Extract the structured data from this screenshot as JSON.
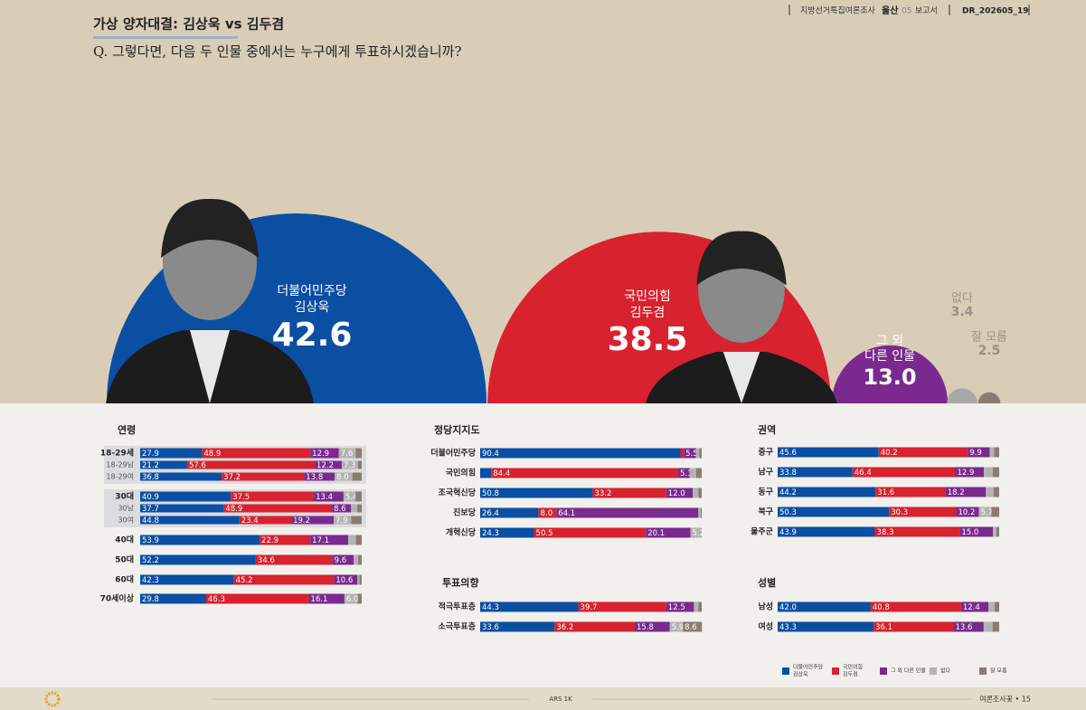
{
  "header": {
    "title": "가상 양자대결: 김상욱 vs 김두겸",
    "question": "Q. 그렇다면, 다음 두 인물 중에서는 누구에게 투표하시겠습니까?",
    "top": [
      "지방선거특집여론조사",
      "울산",
      "05",
      "보고서",
      "DR_202605_19"
    ]
  },
  "bubbles": [
    {
      "lines": [
        "더불어민주당",
        "김상욱"
      ],
      "value": 42.6,
      "color": "#0b4fa3"
    },
    {
      "lines": [
        "국민의힘",
        "김두겸"
      ],
      "value": 38.5,
      "color": "#d8222f"
    },
    {
      "lines": [
        "그 외",
        "다른 인물"
      ],
      "value": 13.0,
      "value_label": "13.0",
      "color": "#7a2a8e"
    },
    {
      "lines": [
        "없다"
      ],
      "value": 3.4,
      "color": "#a9a9a9"
    },
    {
      "lines": [
        "잘 모름"
      ],
      "value": 2.5,
      "color": "#8b7b72"
    }
  ],
  "series": [
    {
      "name": [
        "더불어민주당",
        "김상욱"
      ],
      "color": "#0b4fa3"
    },
    {
      "name": [
        "국민의힘",
        "김두겸"
      ],
      "color": "#d8222f"
    },
    {
      "name": [
        "그 외 다른 인물"
      ],
      "color": "#7a2a8e"
    },
    {
      "name": [
        "없다"
      ],
      "color": "#b3b3b3"
    },
    {
      "name": [
        "잘 모름"
      ],
      "color": "#8b7b72"
    }
  ],
  "sections": [
    {
      "title": "연령",
      "rows": [
        {
          "label": "18-29세",
          "values": [
            27.9,
            48.9,
            12.9,
            7.6,
            2.7
          ],
          "labels": [
            "27.9",
            "48.9",
            "12.9",
            "7.6",
            null
          ]
        },
        {
          "label": "18-29남",
          "values": [
            21.2,
            57.6,
            12.2,
            7.3,
            1.7
          ],
          "labels": [
            "21.2",
            "57.6",
            "12.2",
            "7.3",
            null
          ]
        },
        {
          "label": "18-29여",
          "values": [
            36.8,
            37.2,
            13.8,
            8.0,
            4.2
          ],
          "labels": [
            "36.8",
            "37.2",
            "13.8",
            "8.0",
            null
          ]
        },
        {
          "label": "30대",
          "values": [
            40.9,
            37.5,
            13.4,
            5.4,
            2.8
          ],
          "labels": [
            "40.9",
            "37.5",
            "13.4",
            "5.4",
            null
          ]
        },
        {
          "label": "30남",
          "values": [
            37.7,
            48.9,
            8.6,
            2.8,
            2.0
          ],
          "labels": [
            "37.7",
            "48.9",
            "8.6",
            null,
            null
          ]
        },
        {
          "label": "30여",
          "values": [
            44.8,
            23.4,
            19.2,
            7.9,
            4.7
          ],
          "labels": [
            "44.8",
            "23.4",
            "19.2",
            "7.9",
            null
          ]
        },
        {
          "label": "40대",
          "values": [
            53.9,
            22.9,
            17.1,
            3.5,
            2.6
          ],
          "labels": [
            "53.9",
            "22.9",
            "17.1",
            null,
            null
          ]
        },
        {
          "label": "50대",
          "values": [
            52.2,
            34.6,
            9.6,
            2.0,
            1.6
          ],
          "labels": [
            "52.2",
            "34.6",
            "9.6",
            null,
            null
          ]
        },
        {
          "label": "60대",
          "values": [
            42.3,
            45.2,
            10.6,
            0.9,
            1.0
          ],
          "labels": [
            "42.3",
            "45.2",
            "10.6",
            null,
            null
          ]
        },
        {
          "label": "70세이상",
          "values": [
            29.8,
            46.3,
            16.1,
            6.0,
            1.8
          ],
          "labels": [
            "29.8",
            "46.3",
            "16.1",
            "6.0",
            null
          ]
        }
      ]
    },
    {
      "title": "정당지지도",
      "rows": [
        {
          "label": "더불어민주당",
          "values": [
            90.4,
            1.5,
            5.5,
            1.5,
            1.1
          ],
          "labels": [
            "90.4",
            null,
            "5.5",
            null,
            null
          ]
        },
        {
          "label": "국민의힘",
          "values": [
            5.0,
            84.4,
            5.1,
            3.0,
            2.5
          ],
          "labels": [
            null,
            "84.4",
            "5.1",
            null,
            null
          ]
        },
        {
          "label": "조국혁신당",
          "values": [
            50.8,
            33.2,
            12.0,
            2.5,
            1.5
          ],
          "labels": [
            "50.8",
            "33.2",
            "12.0",
            null,
            null
          ]
        },
        {
          "label": "진보당",
          "values": [
            26.4,
            8.0,
            64.1,
            1.0,
            0.5
          ],
          "labels": [
            "26.4",
            "8.0",
            "64.1",
            null,
            null
          ]
        },
        {
          "label": "개혁신당",
          "values": [
            24.3,
            50.5,
            20.1,
            5.2,
            0
          ],
          "labels": [
            "24.3",
            "50.5",
            "20.1",
            "5.2",
            null
          ]
        }
      ]
    },
    {
      "title": "투표의향",
      "rows": [
        {
          "label": "적극투표층",
          "values": [
            44.3,
            39.7,
            12.5,
            2.0,
            1.5
          ],
          "labels": [
            "44.3",
            "39.7",
            "12.5",
            null,
            null
          ]
        },
        {
          "label": "소극투표층",
          "values": [
            33.6,
            36.2,
            15.8,
            5.9,
            8.6
          ],
          "labels": [
            "33.6",
            "36.2",
            "15.8",
            "5.9",
            "8.6"
          ]
        }
      ]
    },
    {
      "title": "권역",
      "rows": [
        {
          "label": "중구",
          "values": [
            45.6,
            40.2,
            9.9,
            2.0,
            2.3
          ],
          "labels": [
            "45.6",
            "40.2",
            "9.9",
            null,
            null
          ]
        },
        {
          "label": "남구",
          "values": [
            33.8,
            46.4,
            12.9,
            4.0,
            2.9
          ],
          "labels": [
            "33.8",
            "46.4",
            "12.9",
            null,
            null
          ]
        },
        {
          "label": "동구",
          "values": [
            44.2,
            31.6,
            18.2,
            3.5,
            2.5
          ],
          "labels": [
            "44.2",
            "31.6",
            "18.2",
            null,
            null
          ]
        },
        {
          "label": "북구",
          "values": [
            50.3,
            30.3,
            10.2,
            5.7,
            3.5
          ],
          "labels": [
            "50.3",
            "30.3",
            "10.2",
            "5.7",
            null
          ]
        },
        {
          "label": "울주군",
          "values": [
            43.9,
            38.3,
            15.0,
            1.5,
            1.3
          ],
          "labels": [
            "43.9",
            "38.3",
            "15.0",
            null,
            null
          ]
        }
      ]
    },
    {
      "title": "성별",
      "rows": [
        {
          "label": "남성",
          "values": [
            42.0,
            40.8,
            12.4,
            2.8,
            2.0
          ],
          "labels": [
            "42.0",
            "40.8",
            "12.4",
            null,
            null
          ]
        },
        {
          "label": "여성",
          "values": [
            43.3,
            36.1,
            13.6,
            4.0,
            3.0
          ],
          "labels": [
            "43.3",
            "36.1",
            "13.6",
            null,
            null
          ]
        }
      ]
    }
  ],
  "footer": {
    "method": "ARS 1K",
    "page": "여론조사꽃 • 15"
  }
}
